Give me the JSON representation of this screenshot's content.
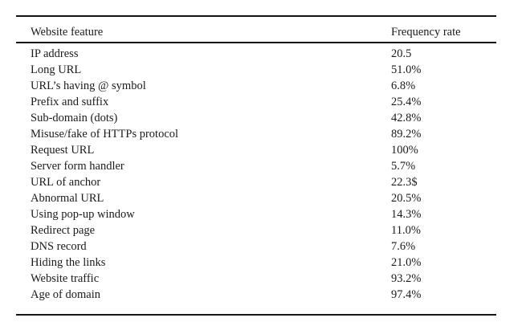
{
  "styles": {
    "background": "#ffffff",
    "text_color": "#1b1b1b",
    "rule_color": "#141414"
  },
  "table": {
    "columns": [
      {
        "label": "Website feature"
      },
      {
        "label": "Frequency rate"
      }
    ],
    "rows": [
      [
        "IP address",
        "20.5"
      ],
      [
        "Long URL",
        "51.0%"
      ],
      [
        "URL’s having @ symbol",
        "6.8%"
      ],
      [
        "Prefix and suffix",
        "25.4%"
      ],
      [
        "Sub-domain (dots)",
        "42.8%"
      ],
      [
        "Misuse/fake of HTTPs protocol",
        "89.2%"
      ],
      [
        "Request URL",
        "100%"
      ],
      [
        "Server form handler",
        "5.7%"
      ],
      [
        "URL of anchor",
        "22.3$"
      ],
      [
        "Abnormal URL",
        "20.5%"
      ],
      [
        "Using pop-up window",
        "14.3%"
      ],
      [
        "Redirect page",
        "11.0%"
      ],
      [
        "DNS record",
        "7.6%"
      ],
      [
        "Hiding the links",
        "21.0%"
      ],
      [
        "Website traffic",
        "93.2%"
      ],
      [
        "Age of domain",
        "97.4%"
      ]
    ]
  }
}
